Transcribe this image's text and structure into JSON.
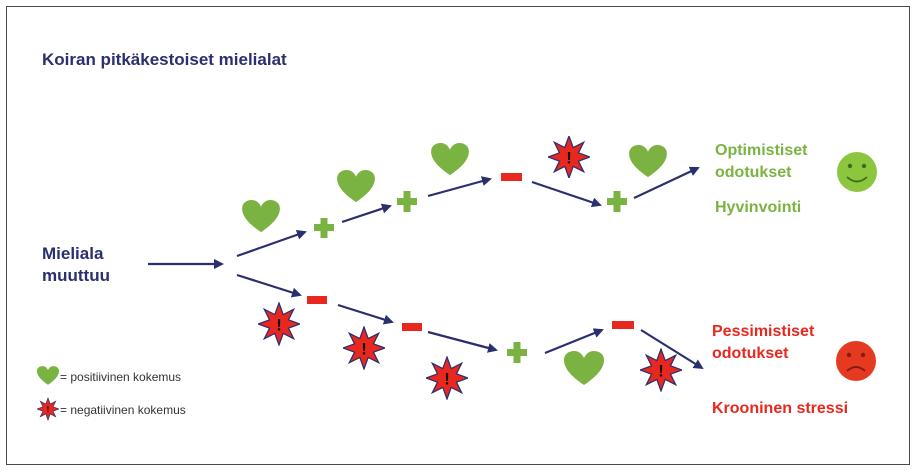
{
  "title": "Koiran pitkäkestoiset mielialat",
  "start": {
    "line1": "Mieliala",
    "line2": "muuttuu"
  },
  "positive_outcome": {
    "line1": "Optimistiset",
    "line2": "odotukset",
    "wellbeing": "Hyvinvointi"
  },
  "negative_outcome": {
    "line1": "Pessimistiset",
    "line2": "odotukset",
    "stress": "Krooninen stressi"
  },
  "legend": {
    "positive": "= positiivinen kokemus",
    "negative": "= negatiivinen kokemus"
  },
  "colors": {
    "arrow": "#2a2f6e",
    "heart": "#7bb342",
    "plus": "#7bb342",
    "minus": "#e8281f",
    "burst": "#e8281f",
    "positive_text": "#7bb342",
    "negative_text": "#e8281f",
    "happy_face": "#8cc63f",
    "sad_face": "#e53a22"
  },
  "upper_path_symbols": [
    "heart",
    "plus",
    "heart",
    "plus",
    "heart",
    "minus",
    "burst",
    "plus",
    "heart"
  ],
  "lower_path_symbols": [
    "burst",
    "minus",
    "burst",
    "minus",
    "burst",
    "plus",
    "heart",
    "minus",
    "burst"
  ]
}
